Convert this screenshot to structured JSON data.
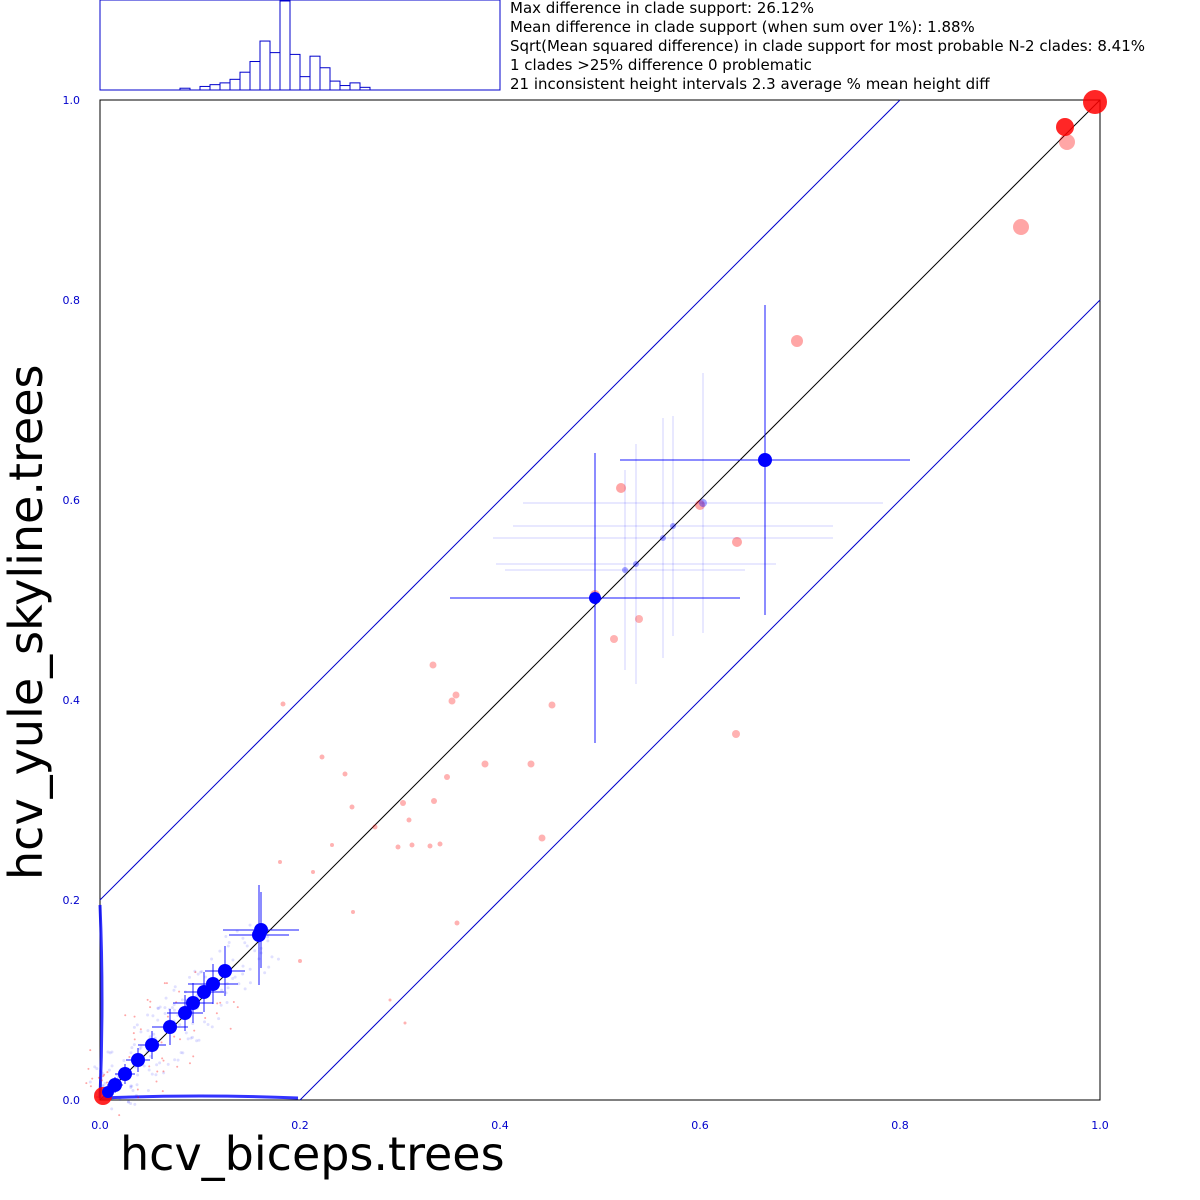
{
  "stats": [
    "Max difference in clade support: 26.12%",
    "Mean difference in clade support (when sum over 1%): 1.88%",
    "Sqrt(Mean squared difference) in clade support for most probable N-2 clades: 8.41%",
    "1 clades >25% difference 0 problematic",
    "21 inconsistent height intervals 2.3 average % mean height diff"
  ],
  "chart_data": {
    "type": "scatter",
    "xlabel": "hcv_biceps.trees",
    "ylabel": "hcv_yule_skyline.trees",
    "xlim": [
      0,
      1
    ],
    "ylim": [
      0,
      1
    ],
    "x_ticks": [
      "0.0",
      "0.2",
      "0.4",
      "0.6",
      "0.8",
      "1.0"
    ],
    "y_ticks": [
      "0.0",
      "0.2",
      "0.4",
      "0.6",
      "0.8",
      "1.0"
    ],
    "tick_values": [
      0,
      0.2,
      0.4,
      0.6,
      0.8,
      1.0
    ],
    "reference_lines": {
      "diagonal": "y = x",
      "band_offset": 0.2
    },
    "colors": {
      "axis": "#0000cc",
      "clade_point": "#ff0000",
      "height_point": "#0000ff",
      "diagonal": "#000000"
    },
    "histogram": {
      "description_bins": [
        0.0,
        0.0,
        0.0,
        0.0,
        0.0,
        0.0,
        0.0,
        0.0,
        0.02,
        0.0,
        0.04,
        0.06,
        0.08,
        0.12,
        0.2,
        0.32,
        0.55,
        0.42,
        1.0,
        0.4,
        0.15,
        0.38,
        0.25,
        0.1,
        0.05,
        0.08,
        0.03,
        0.0,
        0.0,
        0.0,
        0.0,
        0.0,
        0.0,
        0.0,
        0.0,
        0.0,
        0.0,
        0.0,
        0.0,
        0.0
      ]
    },
    "clade_points": [
      {
        "x": 0.995,
        "y": 0.998,
        "r": 12
      },
      {
        "x": 0.965,
        "y": 0.973,
        "r": 9
      },
      {
        "x": 0.967,
        "y": 0.958,
        "r": 8
      },
      {
        "x": 0.921,
        "y": 0.873,
        "r": 8
      },
      {
        "x": 0.697,
        "y": 0.759,
        "r": 6
      },
      {
        "x": 0.521,
        "y": 0.612,
        "r": 5
      },
      {
        "x": 0.6,
        "y": 0.595,
        "r": 5
      },
      {
        "x": 0.637,
        "y": 0.558,
        "r": 5
      },
      {
        "x": 0.539,
        "y": 0.481,
        "r": 4
      },
      {
        "x": 0.495,
        "y": 0.505,
        "r": 5
      },
      {
        "x": 0.514,
        "y": 0.461,
        "r": 4
      },
      {
        "x": 0.333,
        "y": 0.435,
        "r": 3.5
      },
      {
        "x": 0.356,
        "y": 0.405,
        "r": 3.5
      },
      {
        "x": 0.352,
        "y": 0.399,
        "r": 3.5
      },
      {
        "x": 0.452,
        "y": 0.395,
        "r": 3.5
      },
      {
        "x": 0.636,
        "y": 0.366,
        "r": 4
      },
      {
        "x": 0.385,
        "y": 0.336,
        "r": 3.5
      },
      {
        "x": 0.431,
        "y": 0.336,
        "r": 3.5
      },
      {
        "x": 0.347,
        "y": 0.323,
        "r": 3
      },
      {
        "x": 0.334,
        "y": 0.299,
        "r": 3
      },
      {
        "x": 0.303,
        "y": 0.297,
        "r": 3
      },
      {
        "x": 0.442,
        "y": 0.262,
        "r": 3.5
      },
      {
        "x": 0.183,
        "y": 0.396,
        "r": 2.5
      },
      {
        "x": 0.222,
        "y": 0.343,
        "r": 2.5
      },
      {
        "x": 0.245,
        "y": 0.326,
        "r": 2.5
      },
      {
        "x": 0.252,
        "y": 0.293,
        "r": 2.5
      },
      {
        "x": 0.275,
        "y": 0.273,
        "r": 2.5
      },
      {
        "x": 0.309,
        "y": 0.28,
        "r": 2.5
      },
      {
        "x": 0.298,
        "y": 0.253,
        "r": 2.5
      },
      {
        "x": 0.312,
        "y": 0.255,
        "r": 2.5
      },
      {
        "x": 0.33,
        "y": 0.254,
        "r": 2.5
      },
      {
        "x": 0.34,
        "y": 0.256,
        "r": 2.5
      },
      {
        "x": 0.357,
        "y": 0.177,
        "r": 2.5
      },
      {
        "x": 0.253,
        "y": 0.188,
        "r": 2
      },
      {
        "x": 0.2,
        "y": 0.139,
        "r": 2
      },
      {
        "x": 0.232,
        "y": 0.255,
        "r": 2
      },
      {
        "x": 0.213,
        "y": 0.228,
        "r": 2
      },
      {
        "x": 0.18,
        "y": 0.238,
        "r": 2
      },
      {
        "x": 0.29,
        "y": 0.1,
        "r": 1.5
      },
      {
        "x": 0.305,
        "y": 0.077,
        "r": 1.5
      },
      {
        "x": 0.003,
        "y": 0.004,
        "r": 9
      }
    ],
    "height_points": [
      {
        "x": 0.665,
        "y": 0.64,
        "dx": 0.145,
        "dy": 0.155,
        "r": 7,
        "strong": true
      },
      {
        "x": 0.495,
        "y": 0.502,
        "dx": 0.145,
        "dy": 0.145,
        "r": 6,
        "strong": true
      },
      {
        "x": 0.603,
        "y": 0.597,
        "dx": 0.18,
        "dy": 0.13,
        "r": 4,
        "strong": false
      },
      {
        "x": 0.573,
        "y": 0.574,
        "dx": 0.16,
        "dy": 0.11,
        "r": 3,
        "strong": false
      },
      {
        "x": 0.563,
        "y": 0.562,
        "dx": 0.17,
        "dy": 0.12,
        "r": 3,
        "strong": false
      },
      {
        "x": 0.536,
        "y": 0.536,
        "dx": 0.14,
        "dy": 0.12,
        "r": 3,
        "strong": false
      },
      {
        "x": 0.525,
        "y": 0.53,
        "dx": 0.12,
        "dy": 0.1,
        "r": 3,
        "strong": false
      },
      {
        "x": 0.161,
        "y": 0.17,
        "dx": 0.038,
        "dy": 0.038,
        "r": 7,
        "strong": true
      },
      {
        "x": 0.159,
        "y": 0.165,
        "dx": 0.03,
        "dy": 0.05,
        "r": 7,
        "strong": true
      },
      {
        "x": 0.125,
        "y": 0.129,
        "dx": 0.02,
        "dy": 0.025,
        "r": 7,
        "strong": true
      },
      {
        "x": 0.113,
        "y": 0.116,
        "dx": 0.025,
        "dy": 0.02,
        "r": 7,
        "strong": true
      },
      {
        "x": 0.104,
        "y": 0.108,
        "dx": 0.02,
        "dy": 0.02,
        "r": 7,
        "strong": true
      },
      {
        "x": 0.093,
        "y": 0.097,
        "dx": 0.02,
        "dy": 0.02,
        "r": 7,
        "strong": true
      },
      {
        "x": 0.085,
        "y": 0.087,
        "dx": 0.018,
        "dy": 0.018,
        "r": 7,
        "strong": true
      },
      {
        "x": 0.07,
        "y": 0.073,
        "dx": 0.018,
        "dy": 0.018,
        "r": 7,
        "strong": true
      },
      {
        "x": 0.052,
        "y": 0.055,
        "dx": 0.014,
        "dy": 0.014,
        "r": 7,
        "strong": true
      },
      {
        "x": 0.038,
        "y": 0.04,
        "dx": 0.012,
        "dy": 0.012,
        "r": 7,
        "strong": true
      },
      {
        "x": 0.025,
        "y": 0.026,
        "dx": 0.01,
        "dy": 0.01,
        "r": 7,
        "strong": true
      },
      {
        "x": 0.015,
        "y": 0.015,
        "dx": 0.008,
        "dy": 0.008,
        "r": 7,
        "strong": true
      },
      {
        "x": 0.008,
        "y": 0.008,
        "dx": 0.005,
        "dy": 0.005,
        "r": 6,
        "strong": true
      }
    ]
  }
}
